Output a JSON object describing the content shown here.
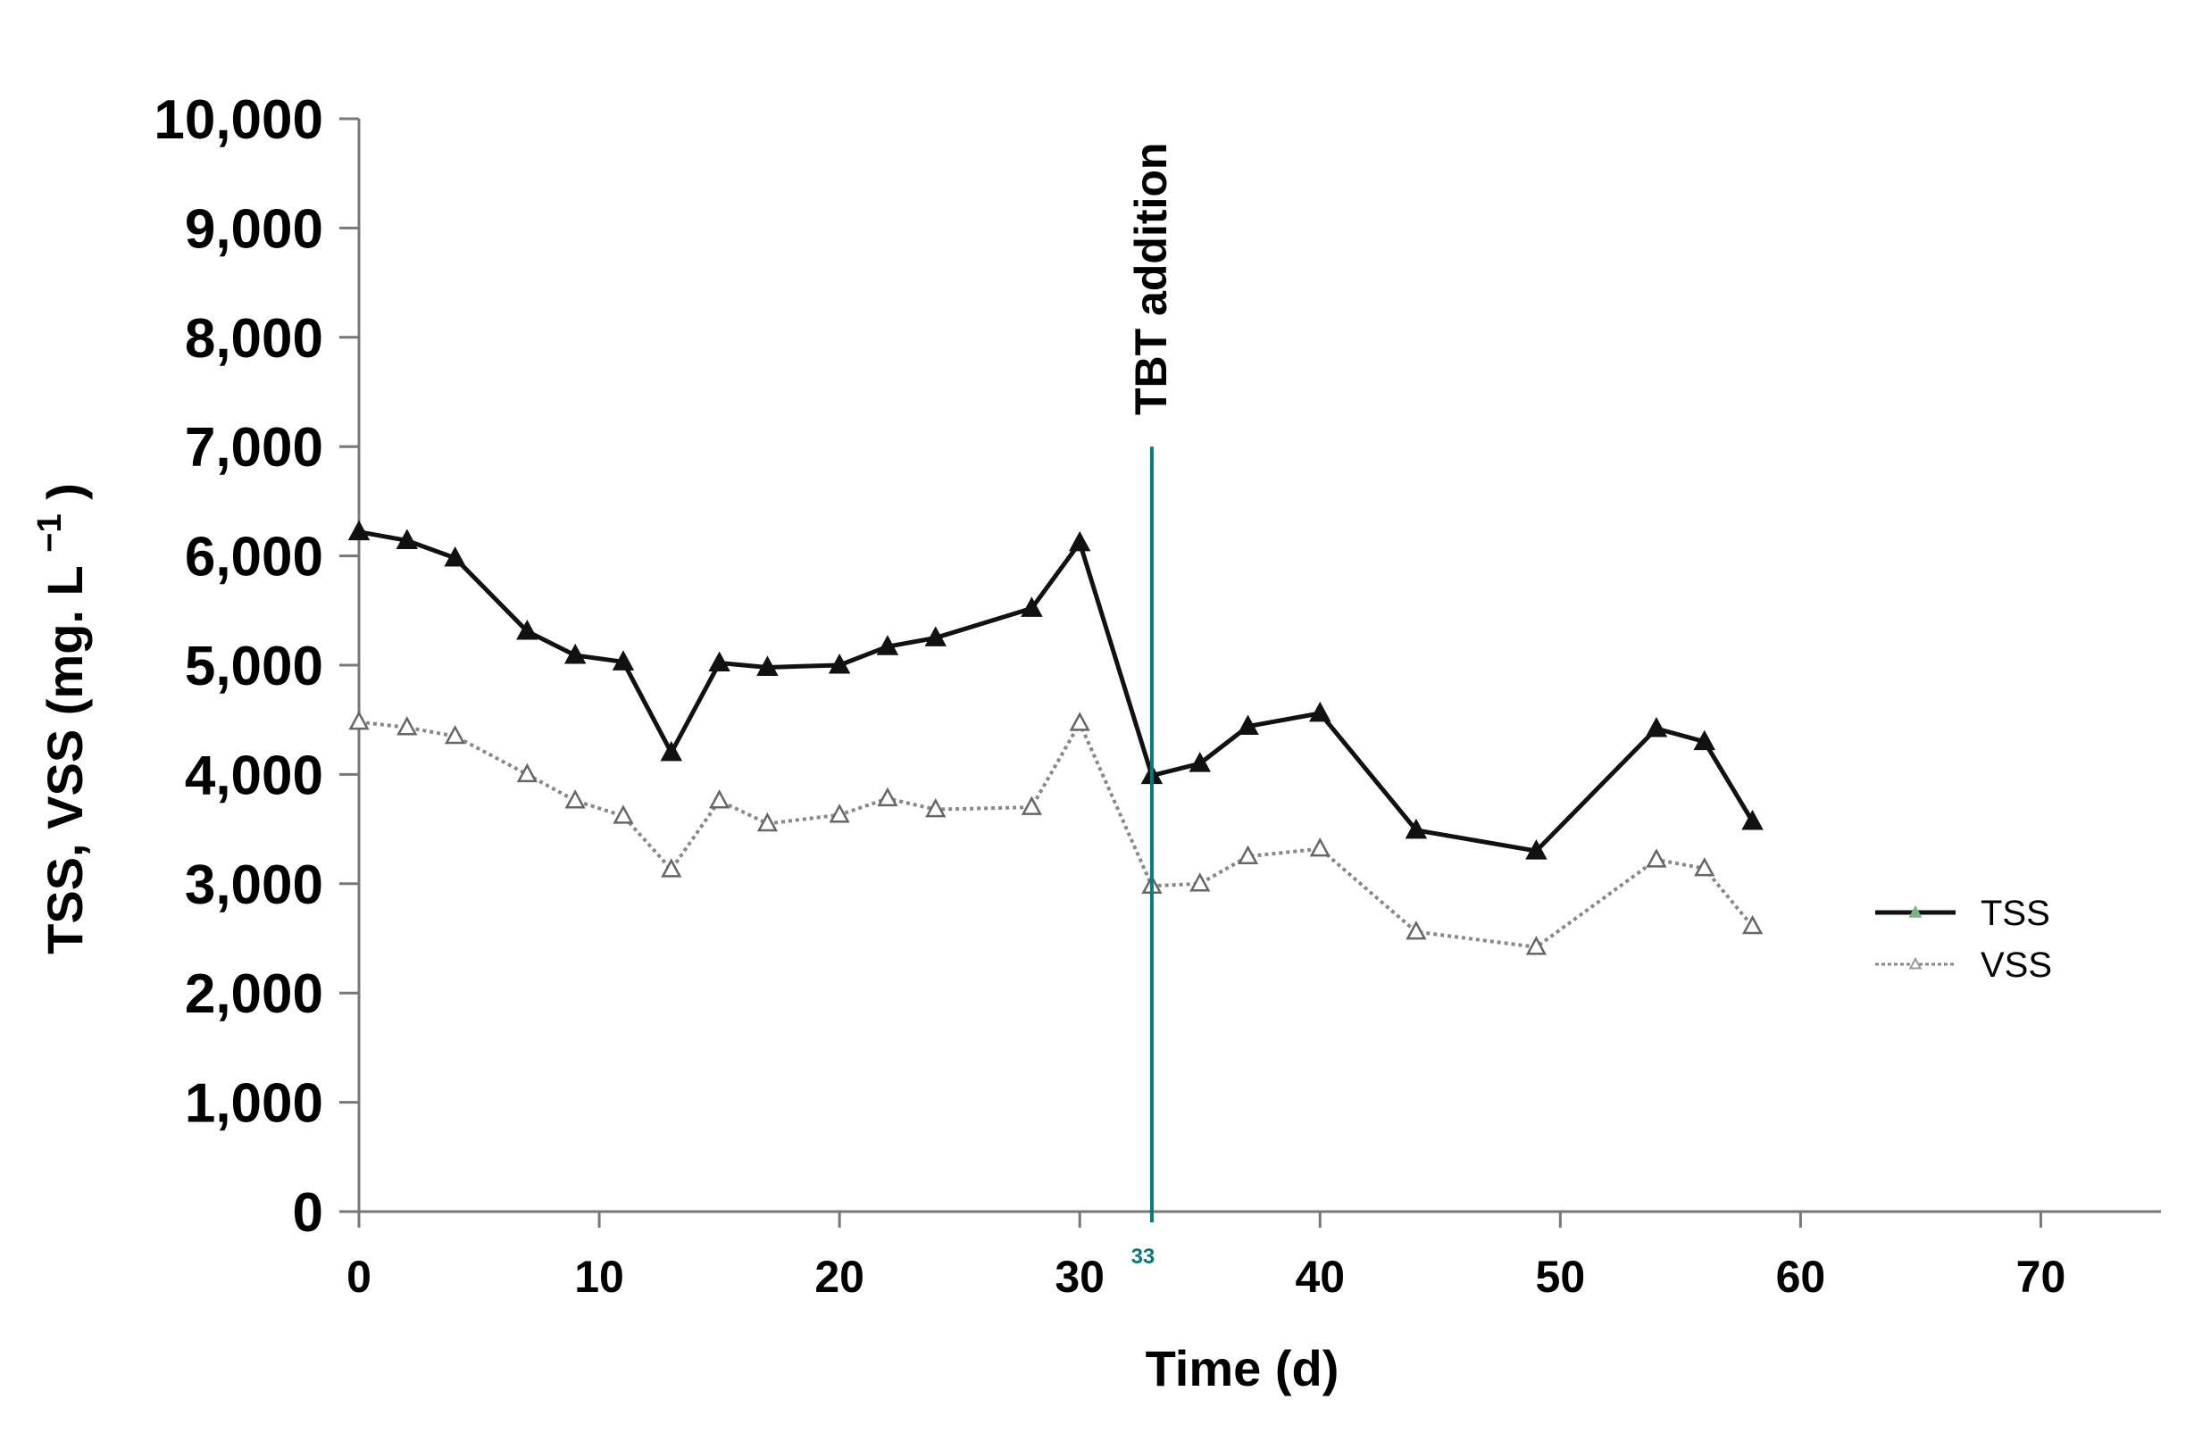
{
  "chart_data": {
    "type": "line",
    "title": "",
    "xlabel": "Time (d)",
    "ylabel": "TSS, VSS (mg. L",
    "ylabel_superscript": "−1",
    "ylabel_close": ")",
    "xlim": [
      0,
      75
    ],
    "ylim": [
      0,
      10000
    ],
    "x_ticks": [
      0,
      10,
      20,
      30,
      40,
      50,
      60,
      70
    ],
    "x_tick_labels": [
      "0",
      "10",
      "20",
      "30",
      "40",
      "50",
      "60",
      "70"
    ],
    "y_ticks": [
      0,
      1000,
      2000,
      3000,
      4000,
      5000,
      6000,
      7000,
      8000,
      9000,
      10000
    ],
    "y_tick_labels": [
      "0",
      "1,000",
      "2,000",
      "3,000",
      "4,000",
      "5,000",
      "6,000",
      "7,000",
      "8,000",
      "9,000",
      "10,000"
    ],
    "grid": false,
    "legend_position": "right",
    "annotation": {
      "label": "TBT addition",
      "x": 33,
      "x_label": "33",
      "y_top": 7000,
      "color": "#0a7a78"
    },
    "series": [
      {
        "name": "TSS",
        "color": "#111111",
        "marker": "filled-triangle",
        "line_style": "solid",
        "x": [
          0,
          2,
          4,
          7,
          9,
          11,
          13,
          15,
          17,
          20,
          22,
          24,
          28,
          30,
          33,
          35,
          37,
          40,
          44,
          49,
          54,
          56,
          58
        ],
        "values": [
          6220,
          6140,
          5980,
          5310,
          5090,
          5030,
          4200,
          5020,
          4980,
          5000,
          5170,
          5250,
          5520,
          6120,
          3990,
          4100,
          4440,
          4560,
          3490,
          3300,
          4420,
          4300,
          3570
        ]
      },
      {
        "name": "VSS",
        "color": "#888888",
        "marker": "open-triangle",
        "line_style": "dotted",
        "x": [
          0,
          2,
          4,
          7,
          9,
          11,
          13,
          15,
          17,
          20,
          22,
          24,
          28,
          30,
          33,
          35,
          37,
          40,
          44,
          49,
          54,
          56,
          58
        ],
        "values": [
          4480,
          4430,
          4350,
          4000,
          3760,
          3620,
          3130,
          3760,
          3550,
          3630,
          3780,
          3680,
          3700,
          4470,
          2980,
          3000,
          3250,
          3320,
          2560,
          2420,
          3220,
          3140,
          2610
        ]
      }
    ]
  }
}
